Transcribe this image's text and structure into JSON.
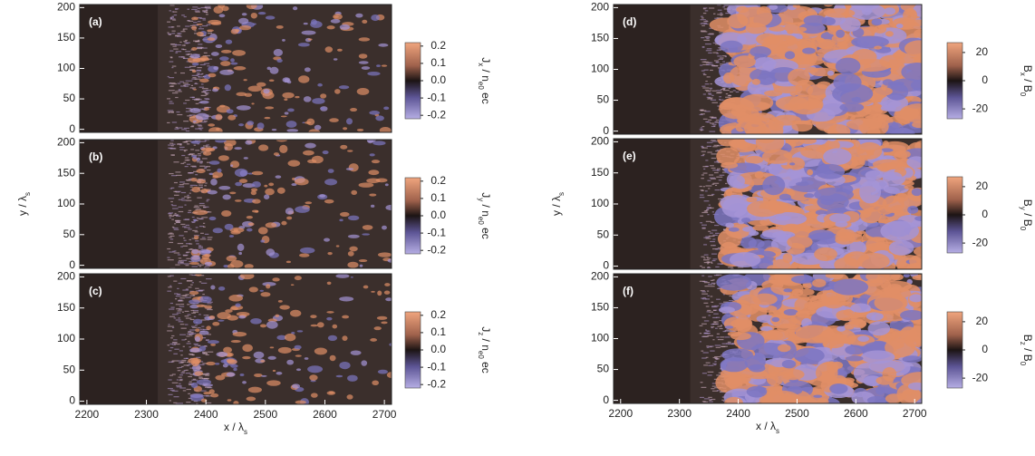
{
  "chart_data": [
    {
      "type": "heatmap",
      "panel_label": "(a)",
      "xlim": [
        2188,
        2712
      ],
      "ylim": [
        -5,
        205
      ],
      "yticks": [
        0,
        50,
        100,
        150,
        200
      ],
      "field": "current",
      "clim": [
        -0.22,
        0.22
      ],
      "cticks": [
        0.2,
        0.1,
        {
          "value": 0,
          "label": "0.0"
        },
        -0.1,
        -0.2
      ],
      "colorbar_label": [
        {
          "text": "J"
        },
        {
          "text": "x",
          "sub": true
        },
        {
          "text": " / n"
        },
        {
          "text": "e0",
          "sub": true
        },
        {
          "text": " ec"
        }
      ]
    },
    {
      "type": "heatmap",
      "panel_label": "(b)",
      "xlim": [
        2188,
        2712
      ],
      "ylim": [
        -5,
        205
      ],
      "yticks": [
        0,
        50,
        100,
        150,
        200
      ],
      "field": "current",
      "ylabel": [
        {
          "text": "y / λ"
        },
        {
          "text": "s",
          "sub": true
        }
      ],
      "clim": [
        -0.22,
        0.22
      ],
      "cticks": [
        0.2,
        0.1,
        {
          "value": 0,
          "label": "0.0"
        },
        -0.1,
        -0.2
      ],
      "colorbar_label": [
        {
          "text": "J"
        },
        {
          "text": "y",
          "sub": true
        },
        {
          "text": " / n"
        },
        {
          "text": "e0",
          "sub": true
        },
        {
          "text": " ec"
        }
      ]
    },
    {
      "type": "heatmap",
      "panel_label": "(c)",
      "xlim": [
        2188,
        2712
      ],
      "ylim": [
        -5,
        205
      ],
      "yticks": [
        0,
        50,
        100,
        150,
        200
      ],
      "field": "current",
      "xticks": [
        2200,
        2300,
        2400,
        2500,
        2600,
        2700
      ],
      "xlabel": [
        {
          "text": "x / λ"
        },
        {
          "text": "s",
          "sub": true
        }
      ],
      "clim": [
        -0.22,
        0.22
      ],
      "cticks": [
        0.2,
        0.1,
        {
          "value": 0,
          "label": "0.0"
        },
        -0.1,
        -0.2
      ],
      "colorbar_label": [
        {
          "text": "J"
        },
        {
          "text": "z",
          "sub": true
        },
        {
          "text": " / n"
        },
        {
          "text": "e0",
          "sub": true
        },
        {
          "text": " ec"
        }
      ]
    },
    {
      "type": "heatmap",
      "panel_label": "(d)",
      "xlim": [
        2188,
        2712
      ],
      "ylim": [
        -5,
        205
      ],
      "yticks": [
        0,
        50,
        100,
        150,
        200
      ],
      "field": "magnetic",
      "clim": [
        -27,
        27
      ],
      "cticks": [
        20,
        0,
        -20
      ],
      "colorbar_label": [
        {
          "text": "B"
        },
        {
          "text": "x",
          "sub": true
        },
        {
          "text": " / B"
        },
        {
          "text": "0",
          "sub": true
        }
      ]
    },
    {
      "type": "heatmap",
      "panel_label": "(e)",
      "xlim": [
        2188,
        2712
      ],
      "ylim": [
        -5,
        205
      ],
      "yticks": [
        0,
        50,
        100,
        150,
        200
      ],
      "field": "magnetic",
      "ylabel": [
        {
          "text": "y / λ"
        },
        {
          "text": "s",
          "sub": true
        }
      ],
      "clim": [
        -27,
        27
      ],
      "cticks": [
        20,
        0,
        -20
      ],
      "colorbar_label": [
        {
          "text": "B"
        },
        {
          "text": "y",
          "sub": true
        },
        {
          "text": " / B"
        },
        {
          "text": "0",
          "sub": true
        }
      ]
    },
    {
      "type": "heatmap",
      "panel_label": "(f)",
      "xlim": [
        2188,
        2712
      ],
      "ylim": [
        -5,
        205
      ],
      "yticks": [
        0,
        50,
        100,
        150,
        200
      ],
      "field": "magnetic",
      "xticks": [
        2200,
        2300,
        2400,
        2500,
        2600,
        2700
      ],
      "xlabel": [
        {
          "text": "x / λ"
        },
        {
          "text": "s",
          "sub": true
        }
      ],
      "clim": [
        -27,
        27
      ],
      "cticks": [
        20,
        0,
        -20
      ],
      "colorbar_label": [
        {
          "text": "B"
        },
        {
          "text": "z",
          "sub": true
        },
        {
          "text": " / B"
        },
        {
          "text": "0",
          "sub": true
        }
      ]
    }
  ]
}
